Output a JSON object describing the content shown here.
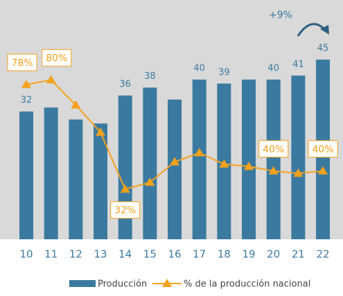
{
  "chart_data": {
    "type": "bar_line",
    "categories": [
      "10",
      "11",
      "12",
      "13",
      "14",
      "15",
      "16",
      "17",
      "18",
      "19",
      "20",
      "21",
      "22"
    ],
    "series": [
      {
        "name": "Producción",
        "color": "#3b7aa0",
        "type": "bar",
        "values": [
          32,
          33,
          30,
          29,
          36,
          38,
          35,
          40,
          39,
          40,
          40,
          41,
          45
        ],
        "value_labels": [
          32,
          null,
          null,
          null,
          36,
          38,
          null,
          40,
          39,
          null,
          40,
          41,
          45
        ]
      },
      {
        "name": "% de la producción nacional",
        "color": "#f5a11c",
        "type": "line",
        "axis": "y2",
        "values": [
          78,
          80,
          69,
          57,
          32,
          35,
          44,
          48,
          43,
          42,
          40,
          39,
          40
        ],
        "value_labels": [
          "78%",
          "80%",
          null,
          null,
          "32%",
          null,
          null,
          null,
          null,
          null,
          "40%",
          null,
          "40%"
        ]
      }
    ],
    "ylim": [
      0,
      53
    ],
    "y2lim": [
      10,
      103
    ],
    "annotations": [
      "+9%"
    ],
    "legend": "bottom"
  }
}
